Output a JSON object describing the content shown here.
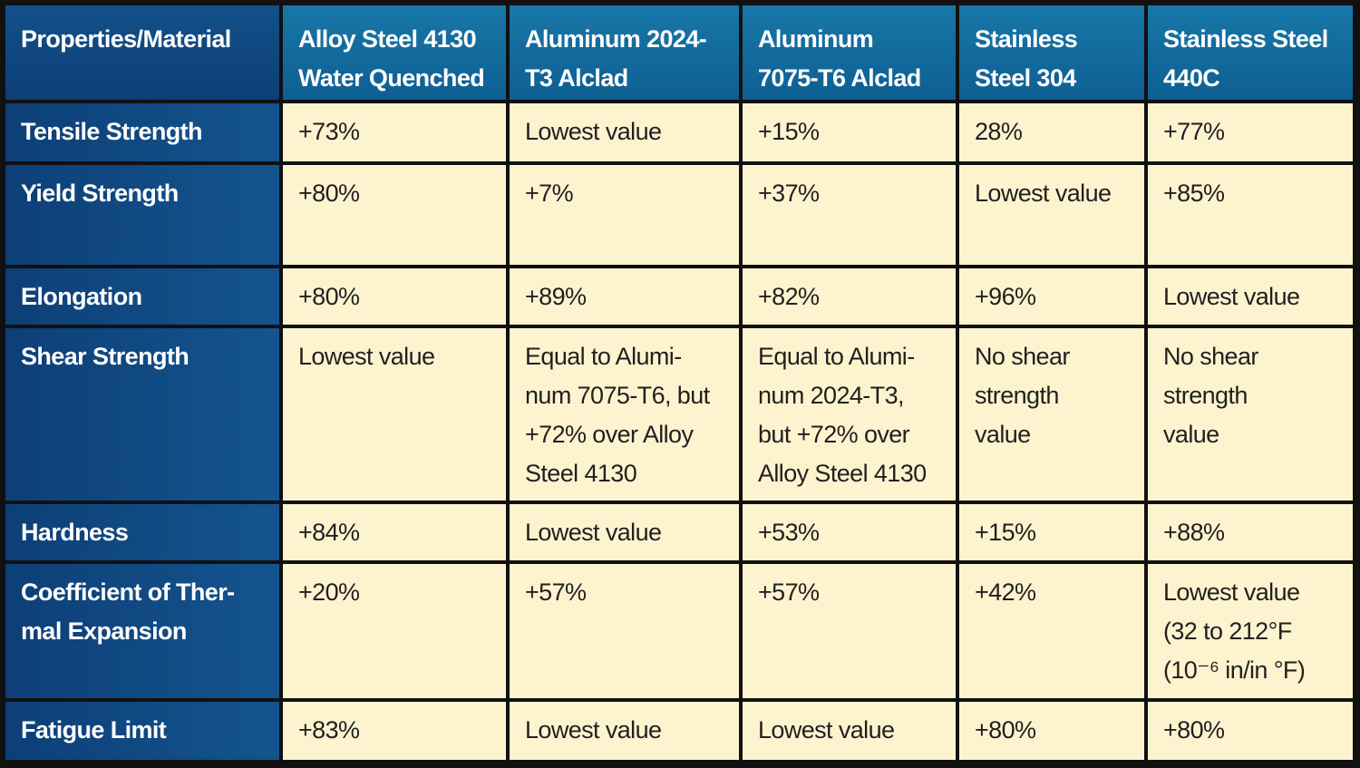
{
  "table": {
    "header": [
      [
        "Properties/Material"
      ],
      [
        "Alloy Steel 4130",
        "Water Quenched"
      ],
      [
        "Aluminum 2024-",
        "T3 Alclad"
      ],
      [
        "Aluminum",
        "7075-T6 Alclad"
      ],
      [
        "Stainless",
        "Steel 304"
      ],
      [
        "Stainless Steel",
        "440C"
      ]
    ],
    "rows": [
      [
        [
          "Tensile Strength"
        ],
        [
          "+73%"
        ],
        [
          "Lowest value"
        ],
        [
          "+15%"
        ],
        [
          "28%"
        ],
        [
          "+77%"
        ]
      ],
      [
        [
          "Yield Strength"
        ],
        [
          "+80%"
        ],
        [
          "+7%"
        ],
        [
          "+37%"
        ],
        [
          "Lowest value"
        ],
        [
          "+85%"
        ]
      ],
      [
        [
          "Elongation"
        ],
        [
          "+80%"
        ],
        [
          "+89%"
        ],
        [
          "+82%"
        ],
        [
          "+96%"
        ],
        [
          "Lowest value"
        ]
      ],
      [
        [
          "Shear Strength"
        ],
        [
          "Lowest value"
        ],
        [
          "Equal to Alumi-",
          "num 7075-T6, but",
          "+72% over Alloy",
          "Steel 4130"
        ],
        [
          "Equal to Alumi-",
          "num 2024-T3,",
          "but +72% over",
          "Alloy Steel 4130"
        ],
        [
          "No shear",
          "strength",
          "value"
        ],
        [
          "No shear",
          "strength",
          "value"
        ]
      ],
      [
        [
          "Hardness"
        ],
        [
          "+84%"
        ],
        [
          "Lowest value"
        ],
        [
          "+53%"
        ],
        [
          "+15%"
        ],
        [
          "+88%"
        ]
      ],
      [
        [
          "Coefficient of Ther-",
          "mal Expansion"
        ],
        [
          "+20%"
        ],
        [
          "+57%"
        ],
        [
          "+57%"
        ],
        [
          "+42%"
        ],
        [
          "Lowest value",
          "(32 to 212°F",
          "(10⁻⁶ in/in °F)"
        ]
      ],
      [
        [
          "Fatigue Limit"
        ],
        [
          "+83%"
        ],
        [
          "Lowest value"
        ],
        [
          "Lowest value"
        ],
        [
          "+80%"
        ],
        [
          "+80%"
        ]
      ]
    ]
  }
}
